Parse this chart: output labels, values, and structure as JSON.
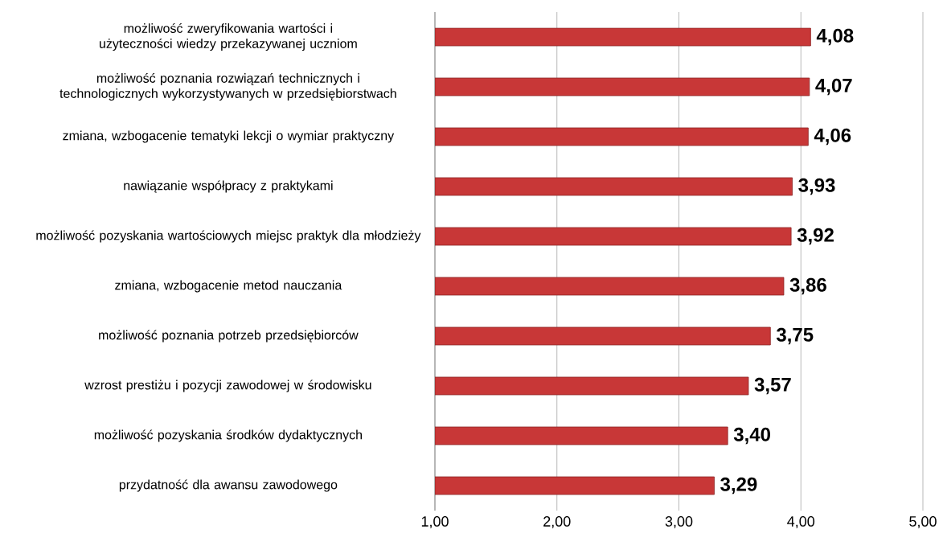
{
  "chart_data": {
    "type": "bar",
    "orientation": "horizontal",
    "categories": [
      "możliwość zweryfikowania wartości i użyteczności wiedzy przekazywanej uczniom",
      "możliwość poznania rozwiązań technicznych i technologicznych wykorzystywanych w przedsiębiorstwach",
      "zmiana, wzbogacenie tematyki lekcji o wymiar praktyczny",
      "nawiązanie współpracy z praktykami",
      "możliwość pozyskania wartościowych miejsc praktyk dla młodzieży",
      "zmiana, wzbogacenie metod nauczania",
      "możliwość poznania potrzeb przedsiębiorców",
      "wzrost prestiżu i pozycji zawodowej w środowisku",
      "możliwość pozyskania środków dydaktycznych",
      "przydatność dla awansu zawodowego"
    ],
    "values": [
      4.08,
      4.07,
      4.06,
      3.93,
      3.92,
      3.86,
      3.75,
      3.57,
      3.4,
      3.29
    ],
    "value_labels": [
      "4,08",
      "4,07",
      "4,06",
      "3,93",
      "3,92",
      "3,86",
      "3,75",
      "3,57",
      "3,40",
      "3,29"
    ],
    "color": "#c83737",
    "xlim": [
      1,
      5
    ],
    "xticks": [
      {
        "value": 1,
        "label": "1,00"
      },
      {
        "value": 2,
        "label": "2,00"
      },
      {
        "value": 3,
        "label": "3,00"
      },
      {
        "value": 4,
        "label": "4,00"
      },
      {
        "value": 5,
        "label": "5,00"
      }
    ],
    "grid": "x"
  }
}
